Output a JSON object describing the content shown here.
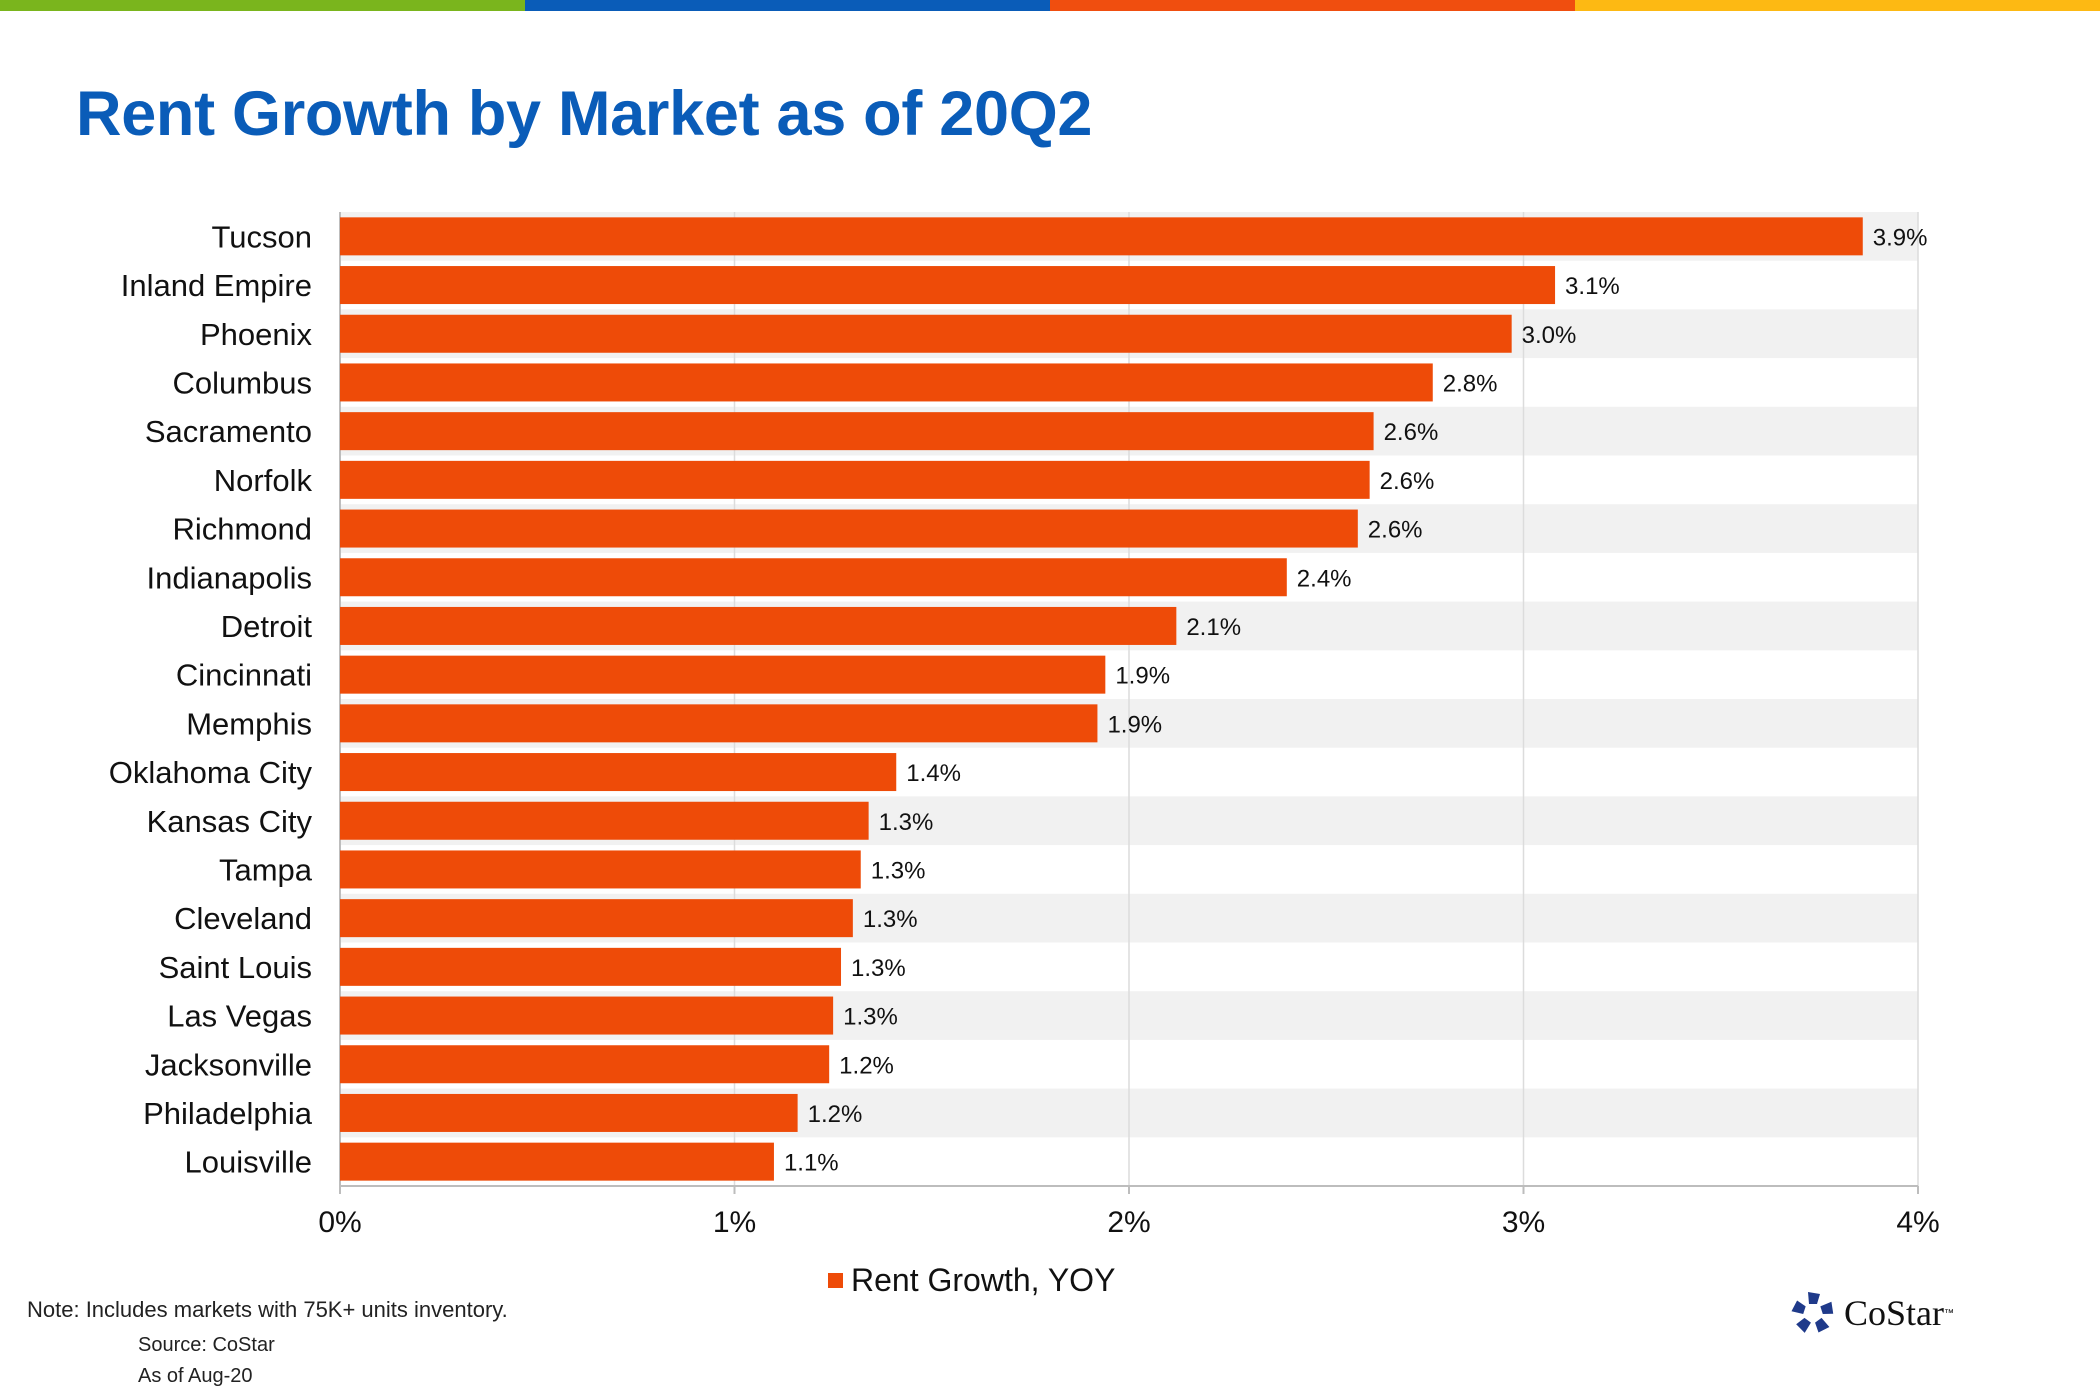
{
  "header": {
    "title": "Rent Growth by Market as of 20Q2",
    "stripe_colors": [
      "#7ab51d",
      "#0a5cb8",
      "#f04e0f",
      "#fdb913"
    ]
  },
  "chart_data": {
    "type": "bar",
    "orientation": "horizontal",
    "title": "Rent Growth by Market as of 20Q2",
    "categories": [
      "Tucson",
      "Inland Empire",
      "Phoenix",
      "Columbus",
      "Sacramento",
      "Norfolk",
      "Richmond",
      "Indianapolis",
      "Detroit",
      "Cincinnati",
      "Memphis",
      "Oklahoma City",
      "Kansas City",
      "Tampa",
      "Cleveland",
      "Saint Louis",
      "Las Vegas",
      "Jacksonville",
      "Philadelphia",
      "Louisville"
    ],
    "series": [
      {
        "name": "Rent Growth, YOY",
        "color": "#ee4b08",
        "values": [
          3.86,
          3.08,
          2.97,
          2.77,
          2.62,
          2.61,
          2.58,
          2.4,
          2.12,
          1.94,
          1.92,
          1.41,
          1.34,
          1.32,
          1.3,
          1.27,
          1.25,
          1.24,
          1.16,
          1.1
        ],
        "data_labels": [
          "3.9%",
          "3.1%",
          "3.0%",
          "2.8%",
          "2.6%",
          "2.6%",
          "2.6%",
          "2.4%",
          "2.1%",
          "1.9%",
          "1.9%",
          "1.4%",
          "1.3%",
          "1.3%",
          "1.3%",
          "1.3%",
          "1.3%",
          "1.2%",
          "1.2%",
          "1.1%"
        ]
      }
    ],
    "xlim": [
      0,
      4
    ],
    "x_ticks": [
      0,
      1,
      2,
      3,
      4
    ],
    "x_tick_labels": [
      "0%",
      "1%",
      "2%",
      "3%",
      "4%"
    ],
    "xlabel": "",
    "ylabel": "",
    "grid": "vertical gridlines, alternating gray row bands",
    "legend": "bottom-center"
  },
  "legend": {
    "label": "Rent Growth, YOY"
  },
  "footer": {
    "note": "Note: Includes markets with 75K+ units inventory.",
    "source": "Source: CoStar",
    "as_of": "As of Aug-20",
    "logo_text": "CoStar",
    "logo_tm": "™"
  }
}
